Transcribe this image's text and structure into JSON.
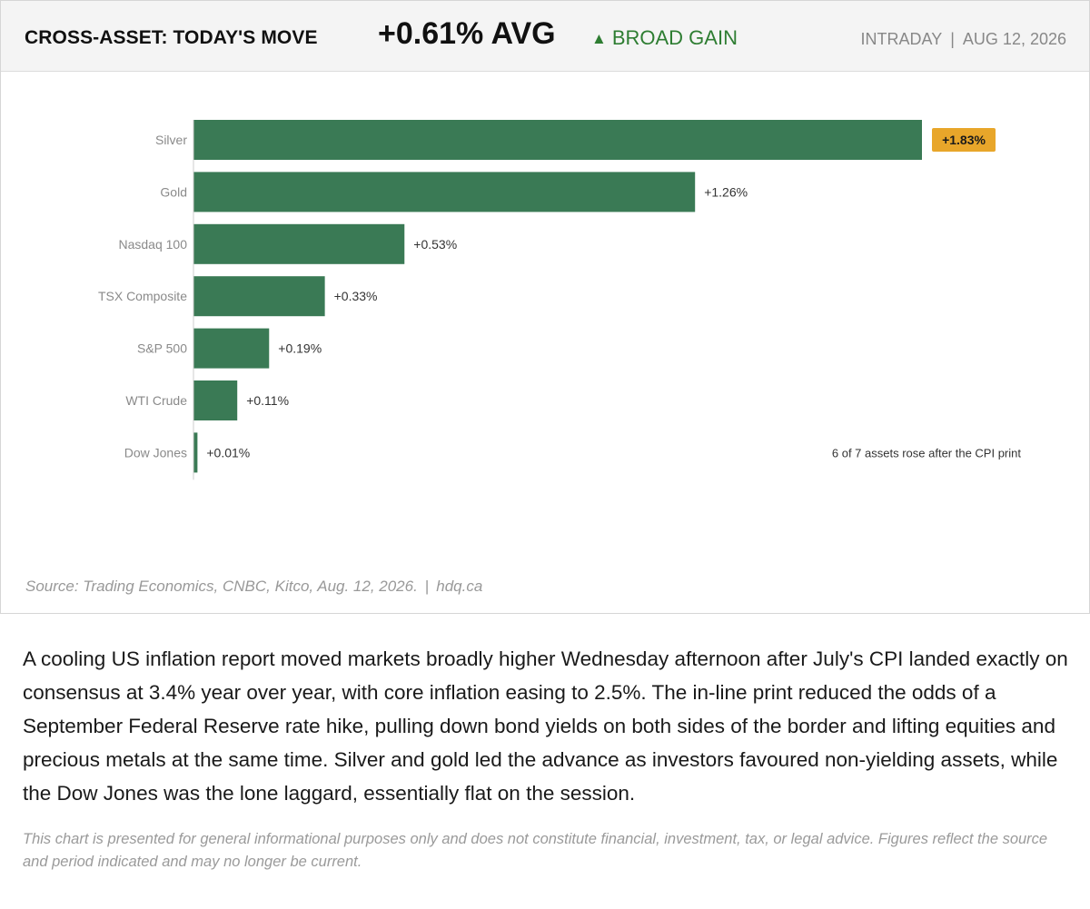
{
  "header": {
    "title": "CROSS-ASSET: TODAY'S MOVE",
    "avg": "+0.61% AVG",
    "trend_arrow": "▲",
    "trend_label": "BROAD GAIN",
    "session": "INTRADAY",
    "separator": "|",
    "date": "AUG 12, 2026"
  },
  "chart_data": {
    "type": "bar",
    "orientation": "horizontal",
    "categories": [
      "Silver",
      "Gold",
      "Nasdaq 100",
      "TSX Composite",
      "S&P 500",
      "WTI Crude",
      "Dow Jones"
    ],
    "values": [
      1.83,
      1.26,
      0.53,
      0.33,
      0.19,
      0.11,
      0.01
    ],
    "value_labels": [
      "+1.83%",
      "+1.26%",
      "+0.53%",
      "+0.33%",
      "+0.19%",
      "+0.11%",
      "+0.01%"
    ],
    "highlight_index": 0,
    "annotation": "6 of 7 assets rose after the CPI print",
    "xlim": [
      0,
      1.83
    ],
    "colors": {
      "bar": "#3a7a55",
      "highlight_badge": "#e8a62a",
      "axis": "#cccccc"
    }
  },
  "source": {
    "text": "Source: Trading Economics, CNBC, Kitco, Aug. 12, 2026.",
    "separator": "|",
    "site": "hdq.ca"
  },
  "article": {
    "paragraph": "A cooling US inflation report moved markets broadly higher Wednesday afternoon after July's CPI landed exactly on consensus at 3.4% year over year, with core inflation easing to 2.5%. The in-line print reduced the odds of a September Federal Reserve rate hike, pulling down bond yields on both sides of the border and lifting equities and precious metals at the same time. Silver and gold led the advance as investors favoured non-yielding assets, while the Dow Jones was the lone laggard, essentially flat on the session.",
    "disclaimer": "This chart is presented for general informational purposes only and does not constitute financial, investment, tax, or legal advice. Figures reflect the source and period indicated and may no longer be current."
  }
}
